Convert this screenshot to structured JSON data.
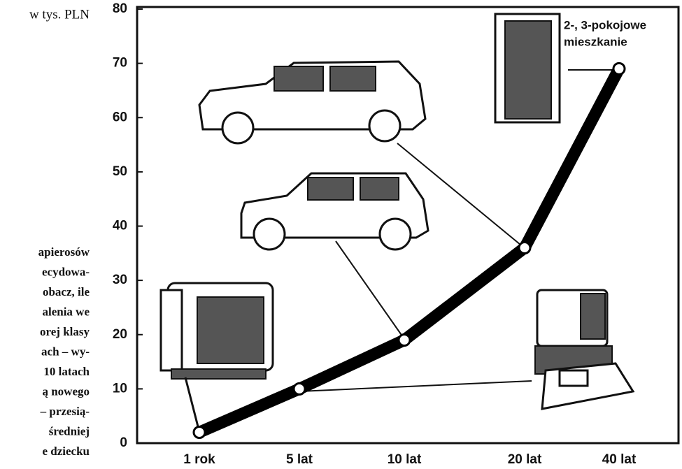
{
  "chart_data": {
    "type": "line",
    "y_unit_label": "w tys. PLN",
    "categories": [
      "1 rok",
      "5 lat",
      "10 lat",
      "20 lat",
      "40 lat"
    ],
    "values": [
      2,
      10,
      19,
      36,
      69
    ],
    "color": "#000000",
    "ylim": [
      0,
      80
    ],
    "yticks": [
      0,
      10,
      20,
      30,
      40,
      50,
      60,
      70,
      80
    ],
    "annotation_lines": [
      "2-, 3-pokojowe",
      "mieszkanie"
    ]
  },
  "side_text": {
    "lines": [
      "apierosów",
      "ecydowa-",
      "obacz, ile",
      "alenia we",
      "orej klasy",
      "ach – wy-",
      "10 latach",
      "ą nowego",
      "– przesią-",
      "średniej",
      "e dziecku"
    ]
  }
}
